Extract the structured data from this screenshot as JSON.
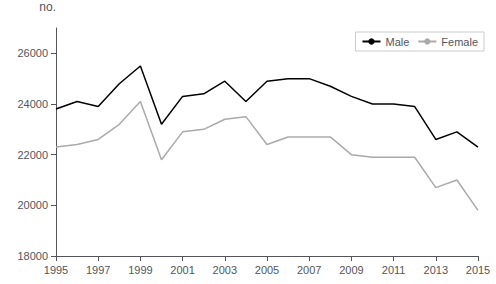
{
  "chart_data": {
    "type": "line",
    "x": [
      1995,
      1996,
      1997,
      1998,
      1999,
      2000,
      2001,
      2002,
      2003,
      2004,
      2005,
      2006,
      2007,
      2008,
      2009,
      2010,
      2011,
      2012,
      2013,
      2014,
      2015
    ],
    "series": [
      {
        "name": "Male",
        "color": "#000000",
        "values": [
          23800,
          24100,
          23900,
          24800,
          25500,
          23200,
          24300,
          24400,
          24900,
          24100,
          24900,
          25000,
          25000,
          24700,
          24300,
          24000,
          24000,
          23900,
          22600,
          22900,
          22300
        ]
      },
      {
        "name": "Female",
        "color": "#aaaaaa",
        "values": [
          22300,
          22400,
          22600,
          23200,
          24100,
          21800,
          22900,
          23000,
          23400,
          23500,
          22400,
          22700,
          22700,
          22700,
          22000,
          21900,
          21900,
          21900,
          20700,
          21000,
          19800
        ]
      }
    ],
    "ylabel": "no.",
    "xlim": [
      1995,
      2015
    ],
    "xticks": [
      1995,
      1997,
      1999,
      2001,
      2003,
      2005,
      2007,
      2009,
      2011,
      2013,
      2015
    ],
    "ylim": [
      18000,
      27000
    ],
    "yticks": [
      18000,
      20000,
      22000,
      24000,
      26000
    ],
    "grid": false,
    "legend": "upper right"
  }
}
